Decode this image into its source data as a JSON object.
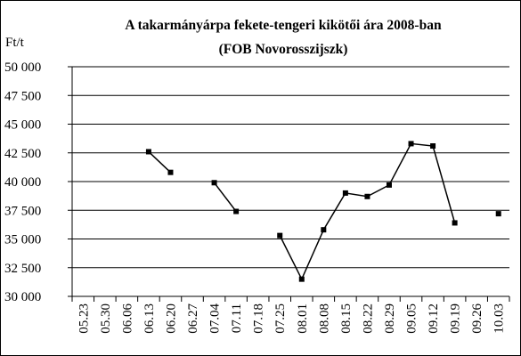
{
  "chart_data": {
    "type": "line",
    "title": "A takarmányárpa fekete-tengeri kikötői ára 2008-ban",
    "subtitle": "(FOB Novorosszijszk)",
    "y_label": "Ft/t",
    "categories": [
      "05.23",
      "05.30",
      "06.06",
      "06.13",
      "06.20",
      "06.27",
      "07.04",
      "07.11",
      "07.18",
      "07.25",
      "08.01",
      "08.08",
      "08.15",
      "08.22",
      "08.29",
      "09.05",
      "09.12",
      "09.19",
      "09.26",
      "10.03"
    ],
    "series": [
      {
        "name": "FOB Novorosszijszk",
        "color": "#000000",
        "values": [
          null,
          null,
          null,
          42600,
          40800,
          null,
          39900,
          37400,
          null,
          35300,
          31500,
          35800,
          39000,
          38700,
          39700,
          43300,
          43100,
          36400,
          null,
          37200
        ]
      }
    ],
    "ylim": [
      30000,
      50000
    ],
    "yticks": [
      {
        "value": 30000,
        "label": "30 000"
      },
      {
        "value": 32500,
        "label": "32 500"
      },
      {
        "value": 35000,
        "label": "35 000"
      },
      {
        "value": 37500,
        "label": "37 500"
      },
      {
        "value": 40000,
        "label": "40 000"
      },
      {
        "value": 42500,
        "label": "42 500"
      },
      {
        "value": 45000,
        "label": "45 000"
      },
      {
        "value": 47500,
        "label": "47 500"
      },
      {
        "value": 50000,
        "label": "50 000"
      }
    ],
    "grid": true
  }
}
